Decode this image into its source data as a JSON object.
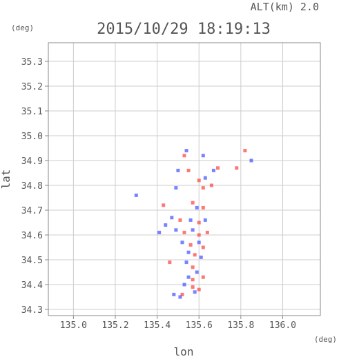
{
  "header": {
    "alt_label": "ALT(km) 2.0",
    "timestamp": "2015/10/29 18:19:13"
  },
  "chart_data": {
    "type": "scatter",
    "title": "2015/10/29 18:19:13",
    "xlabel": "lon",
    "ylabel": "lat",
    "x_unit": "(deg)",
    "y_unit": "(deg)",
    "xlim": [
      134.88,
      136.18
    ],
    "ylim": [
      34.275,
      35.375
    ],
    "x_ticks": [
      135.0,
      135.2,
      135.4,
      135.6,
      135.8,
      136.0
    ],
    "x_tick_labels": [
      "135.0",
      "135.2",
      "135.4",
      "135.6",
      "135.8",
      "136.0"
    ],
    "y_ticks": [
      34.3,
      34.4,
      34.5,
      34.6,
      34.7,
      34.8,
      34.9,
      35.0,
      35.1,
      35.2,
      35.3
    ],
    "y_tick_labels": [
      "34.3",
      "34.4",
      "34.5",
      "34.6",
      "34.7",
      "34.8",
      "34.9",
      "35.0",
      "35.1",
      "35.2",
      "35.3"
    ],
    "grid": true,
    "colors": {
      "positive": "#ff4a4a",
      "negative": "#4a5aff",
      "axis": "#888888",
      "grid": "#cccccc"
    },
    "series": [
      {
        "values": [
          {
            "x": 135.53,
            "y": 34.92,
            "v": 1
          },
          {
            "x": 135.54,
            "y": 34.94,
            "v": -1
          },
          {
            "x": 135.62,
            "y": 34.92,
            "v": -1
          },
          {
            "x": 135.82,
            "y": 34.94,
            "v": 1
          },
          {
            "x": 135.85,
            "y": 34.9,
            "v": -1
          },
          {
            "x": 135.69,
            "y": 34.87,
            "v": 1
          },
          {
            "x": 135.5,
            "y": 34.86,
            "v": -1
          },
          {
            "x": 135.55,
            "y": 34.86,
            "v": 1
          },
          {
            "x": 135.67,
            "y": 34.86,
            "v": -1
          },
          {
            "x": 135.78,
            "y": 34.87,
            "v": 1
          },
          {
            "x": 135.6,
            "y": 34.82,
            "v": 1
          },
          {
            "x": 135.62,
            "y": 34.79,
            "v": 1
          },
          {
            "x": 135.63,
            "y": 34.83,
            "v": -1
          },
          {
            "x": 135.49,
            "y": 34.79,
            "v": -1
          },
          {
            "x": 135.66,
            "y": 34.8,
            "v": 1
          },
          {
            "x": 135.3,
            "y": 34.76,
            "v": -1
          },
          {
            "x": 135.43,
            "y": 34.72,
            "v": 1
          },
          {
            "x": 135.57,
            "y": 34.73,
            "v": 1
          },
          {
            "x": 135.59,
            "y": 34.71,
            "v": -1
          },
          {
            "x": 135.62,
            "y": 34.71,
            "v": 1
          },
          {
            "x": 135.47,
            "y": 34.67,
            "v": -1
          },
          {
            "x": 135.51,
            "y": 34.66,
            "v": 1
          },
          {
            "x": 135.56,
            "y": 34.66,
            "v": -1
          },
          {
            "x": 135.6,
            "y": 34.65,
            "v": 1
          },
          {
            "x": 135.63,
            "y": 34.66,
            "v": -1
          },
          {
            "x": 135.44,
            "y": 34.64,
            "v": -1
          },
          {
            "x": 135.49,
            "y": 34.62,
            "v": -1
          },
          {
            "x": 135.53,
            "y": 34.61,
            "v": 1
          },
          {
            "x": 135.57,
            "y": 34.62,
            "v": -1
          },
          {
            "x": 135.6,
            "y": 34.6,
            "v": 1
          },
          {
            "x": 135.64,
            "y": 34.61,
            "v": 1
          },
          {
            "x": 135.41,
            "y": 34.61,
            "v": -1
          },
          {
            "x": 135.52,
            "y": 34.57,
            "v": -1
          },
          {
            "x": 135.56,
            "y": 34.56,
            "v": 1
          },
          {
            "x": 135.6,
            "y": 34.57,
            "v": -1
          },
          {
            "x": 135.62,
            "y": 34.55,
            "v": 1
          },
          {
            "x": 135.55,
            "y": 34.53,
            "v": -1
          },
          {
            "x": 135.58,
            "y": 34.52,
            "v": 1
          },
          {
            "x": 135.61,
            "y": 34.51,
            "v": -1
          },
          {
            "x": 135.46,
            "y": 34.49,
            "v": 1
          },
          {
            "x": 135.54,
            "y": 34.49,
            "v": -1
          },
          {
            "x": 135.57,
            "y": 34.47,
            "v": 1
          },
          {
            "x": 135.59,
            "y": 34.45,
            "v": -1
          },
          {
            "x": 135.55,
            "y": 34.43,
            "v": -1
          },
          {
            "x": 135.57,
            "y": 34.42,
            "v": 1
          },
          {
            "x": 135.62,
            "y": 34.43,
            "v": 1
          },
          {
            "x": 135.53,
            "y": 34.4,
            "v": -1
          },
          {
            "x": 135.57,
            "y": 34.39,
            "v": 1
          },
          {
            "x": 135.6,
            "y": 34.38,
            "v": 1
          },
          {
            "x": 135.58,
            "y": 34.37,
            "v": -1
          },
          {
            "x": 135.52,
            "y": 34.36,
            "v": 1
          },
          {
            "x": 135.48,
            "y": 34.36,
            "v": -1
          },
          {
            "x": 135.51,
            "y": 34.35,
            "v": -1
          }
        ]
      }
    ]
  }
}
